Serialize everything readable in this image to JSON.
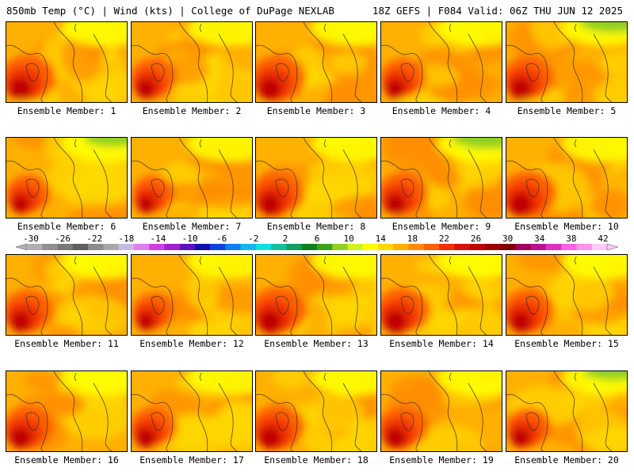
{
  "header": {
    "left": "850mb Temp (°C) | Wind (kts) | College of DuPage NEXLAB",
    "right": "18Z GEFS | F084 Valid: 06Z THU JUN 12 2025"
  },
  "panels": [
    {
      "label": "Ensemble Member: 1",
      "heat": 0.72,
      "cool": 0.25
    },
    {
      "label": "Ensemble Member: 2",
      "heat": 0.62,
      "cool": 0.1
    },
    {
      "label": "Ensemble Member: 3",
      "heat": 0.72,
      "cool": 0.1
    },
    {
      "label": "Ensemble Member: 4",
      "heat": 0.6,
      "cool": 0.22
    },
    {
      "label": "Ensemble Member: 5",
      "heat": 0.68,
      "cool": 0.55
    },
    {
      "label": "Ensemble Member: 6",
      "heat": 0.58,
      "cool": 0.45
    },
    {
      "label": "Ensemble Member: 7",
      "heat": 0.56,
      "cool": 0.1
    },
    {
      "label": "Ensemble Member: 8",
      "heat": 0.7,
      "cool": 0.12
    },
    {
      "label": "Ensemble Member: 9",
      "heat": 0.66,
      "cool": 0.6
    },
    {
      "label": "Ensemble Member: 10",
      "heat": 0.74,
      "cool": 0.1
    },
    {
      "label": "Ensemble Member: 11",
      "heat": 0.66,
      "cool": 0.05
    },
    {
      "label": "Ensemble Member: 12",
      "heat": 0.56,
      "cool": 0.05
    },
    {
      "label": "Ensemble Member: 13",
      "heat": 0.74,
      "cool": 0.08
    },
    {
      "label": "Ensemble Member: 14",
      "heat": 0.72,
      "cool": 0.08
    },
    {
      "label": "Ensemble Member: 15",
      "heat": 0.68,
      "cool": 0.08
    },
    {
      "label": "Ensemble Member: 16",
      "heat": 0.68,
      "cool": 0.1
    },
    {
      "label": "Ensemble Member: 17",
      "heat": 0.62,
      "cool": 0.2
    },
    {
      "label": "Ensemble Member: 18",
      "heat": 0.7,
      "cool": 0.08
    },
    {
      "label": "Ensemble Member: 19",
      "heat": 0.66,
      "cool": 0.1
    },
    {
      "label": "Ensemble Member: 20",
      "heat": 0.6,
      "cool": 0.45
    }
  ],
  "colorbar": {
    "ticks": [
      "-30",
      "-26",
      "-22",
      "-18",
      "-14",
      "-10",
      "-6",
      "-2",
      "2",
      "6",
      "10",
      "14",
      "18",
      "22",
      "26",
      "30",
      "34",
      "38",
      "42"
    ],
    "colors": [
      "#b0b0b0",
      "#909090",
      "#787878",
      "#5f5f5f",
      "#8c8c8c",
      "#a8a8a8",
      "#c8b8e8",
      "#e080f0",
      "#d040e0",
      "#a020d0",
      "#6010c0",
      "#1010b0",
      "#1040e0",
      "#1080f0",
      "#10b8f0",
      "#10e0e0",
      "#10c0a0",
      "#10a060",
      "#108020",
      "#40a020",
      "#90d020",
      "#d0f020",
      "#ffff00",
      "#ffd800",
      "#ffb000",
      "#ff8c00",
      "#ff6000",
      "#f03000",
      "#d81010",
      "#c00000",
      "#9c0000",
      "#800000",
      "#a00060",
      "#c01090",
      "#e030c0",
      "#ff60e0",
      "#ff90f0",
      "#ffc8ff"
    ]
  }
}
